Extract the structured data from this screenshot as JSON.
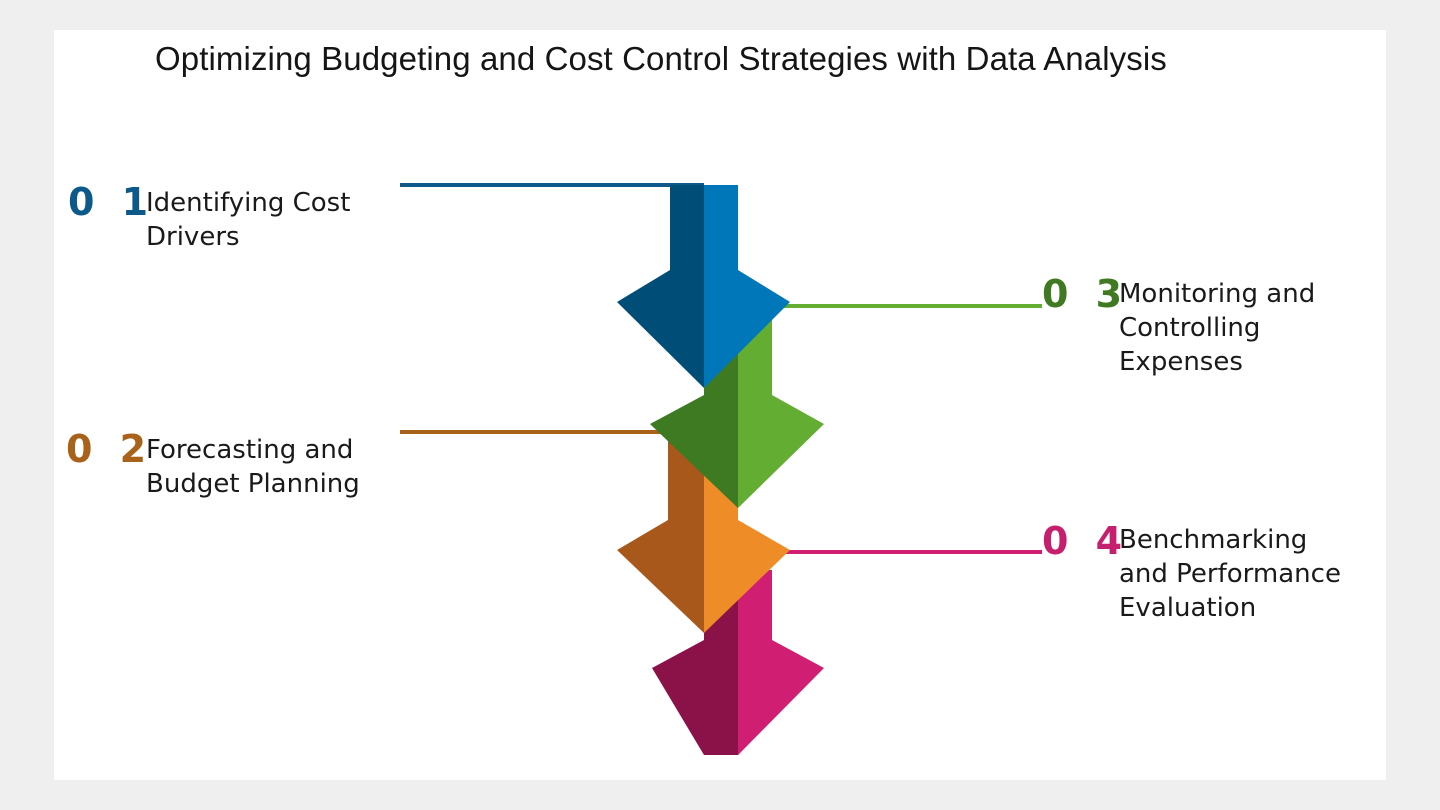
{
  "title": "Optimizing Budgeting and Cost Control Strategies with Data Analysis",
  "steps": [
    {
      "number": "0 1",
      "line1": "Identifying Cost",
      "line2": "Drivers",
      "line3": "",
      "color": "#0d5a8a",
      "accent_light": "#0077b8",
      "accent_dark": "#004d78"
    },
    {
      "number": "0 2",
      "line1": "Forecasting and",
      "line2": "Budget Planning",
      "line3": "",
      "color": "#a8621a",
      "accent_light": "#ee8c28",
      "accent_dark": "#a8581a"
    },
    {
      "number": "0 3",
      "line1": "Monitoring and",
      "line2": "Controlling",
      "line3": "Expenses",
      "color": "#3f7a22",
      "accent_light": "#62ad32",
      "accent_dark": "#3d7a22"
    },
    {
      "number": "0 4",
      "line1": "Benchmarking",
      "line2": "and Performance",
      "line3": "Evaluation",
      "color": "#c4206e",
      "accent_light": "#d01e72",
      "accent_dark": "#8a1248"
    }
  ]
}
